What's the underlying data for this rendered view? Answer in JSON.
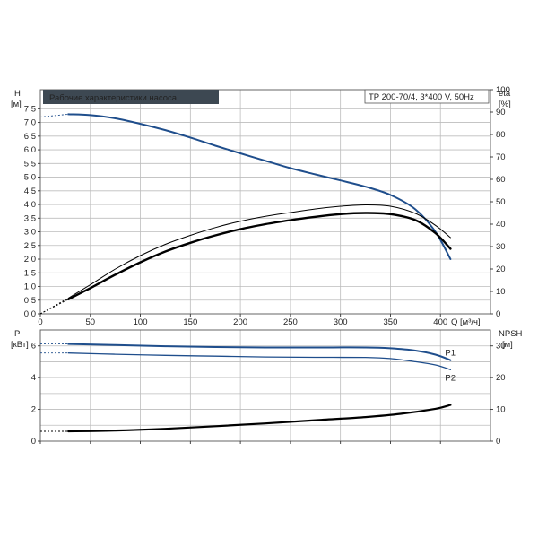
{
  "chart_data": [
    {
      "type": "line",
      "title": "Рабочие характеристики насоса",
      "subtitle": "TP 200-70/4, 3*400 V, 50Hz",
      "x_label": "Q [м³/ч]",
      "x_ticks": [
        "0",
        "50",
        "100",
        "150",
        "200",
        "250",
        "300",
        "350",
        "400"
      ],
      "x_range": [
        0,
        450
      ],
      "y_left_label": "H",
      "y_left_unit": "[м]",
      "y_left_ticks": [
        "0.0",
        "0.5",
        "1.0",
        "1.5",
        "2.0",
        "2.5",
        "3.0",
        "3.5",
        "4.0",
        "4.5",
        "5.0",
        "5.5",
        "6.0",
        "6.5",
        "7.0",
        "7.5"
      ],
      "y_left_range": [
        0,
        8.2
      ],
      "y_right_label": "eta",
      "y_right_unit": "[%]",
      "y_right_ticks": [
        "0",
        "10",
        "20",
        "30",
        "40",
        "50",
        "60",
        "70",
        "80",
        "90",
        "100"
      ],
      "y_right_range": [
        0,
        100
      ],
      "grid": true,
      "series": [
        {
          "axis": "left",
          "color": "#1f4e8c",
          "width": 2,
          "dashed_start": [
            [
              0,
              7.2
            ],
            [
              28,
              7.3
            ]
          ],
          "points": [
            [
              28,
              7.3
            ],
            [
              50,
              7.27
            ],
            [
              75,
              7.15
            ],
            [
              100,
              6.95
            ],
            [
              125,
              6.72
            ],
            [
              150,
              6.45
            ],
            [
              175,
              6.15
            ],
            [
              200,
              5.87
            ],
            [
              225,
              5.6
            ],
            [
              250,
              5.33
            ],
            [
              275,
              5.1
            ],
            [
              300,
              4.88
            ],
            [
              325,
              4.65
            ],
            [
              350,
              4.35
            ],
            [
              375,
              3.82
            ],
            [
              395,
              3.0
            ],
            [
              410,
              2.0
            ]
          ]
        },
        {
          "axis": "right",
          "color": "#000000",
          "width": 1,
          "dashed_start": [
            [
              0,
              0
            ],
            [
              28,
              7
            ]
          ],
          "points": [
            [
              28,
              7
            ],
            [
              50,
              13
            ],
            [
              75,
              20
            ],
            [
              100,
              26
            ],
            [
              125,
              31
            ],
            [
              150,
              35
            ],
            [
              175,
              38.5
            ],
            [
              200,
              41.3
            ],
            [
              225,
              43.5
            ],
            [
              250,
              45.2
            ],
            [
              275,
              46.8
            ],
            [
              300,
              48
            ],
            [
              325,
              48.6
            ],
            [
              350,
              48
            ],
            [
              375,
              44.8
            ],
            [
              395,
              39.5
            ],
            [
              410,
              34
            ]
          ]
        },
        {
          "axis": "right",
          "color": "#000000",
          "width": 2.4,
          "dashed_start": [
            [
              0,
              0
            ],
            [
              28,
              6.5
            ]
          ],
          "points": [
            [
              28,
              6.5
            ],
            [
              50,
              11.5
            ],
            [
              75,
              17.5
            ],
            [
              100,
              23
            ],
            [
              125,
              27.8
            ],
            [
              150,
              31.7
            ],
            [
              175,
              35
            ],
            [
              200,
              37.8
            ],
            [
              225,
              40
            ],
            [
              250,
              41.8
            ],
            [
              275,
              43.3
            ],
            [
              300,
              44.5
            ],
            [
              325,
              45
            ],
            [
              350,
              44.5
            ],
            [
              375,
              41.8
            ],
            [
              395,
              36
            ],
            [
              410,
              29
            ]
          ]
        }
      ]
    },
    {
      "type": "line",
      "x_range": [
        0,
        450
      ],
      "y_left_label": "P",
      "y_left_unit": "[кВт]",
      "y_left_ticks": [
        "0",
        "2",
        "4",
        "6"
      ],
      "y_left_range": [
        0,
        7
      ],
      "y_right_label": "NPSH",
      "y_right_unit": "[м]",
      "y_right_ticks": [
        "0",
        "10",
        "20",
        "30"
      ],
      "y_right_range": [
        0,
        35
      ],
      "grid": true,
      "series": [
        {
          "name": "P1",
          "axis": "left",
          "color": "#1f4e8c",
          "width": 2,
          "dashed_start": [
            [
              0,
              6.12
            ],
            [
              28,
              6.12
            ]
          ],
          "points": [
            [
              28,
              6.12
            ],
            [
              75,
              6.05
            ],
            [
              125,
              5.98
            ],
            [
              175,
              5.93
            ],
            [
              225,
              5.9
            ],
            [
              275,
              5.9
            ],
            [
              325,
              5.9
            ],
            [
              350,
              5.85
            ],
            [
              375,
              5.7
            ],
            [
              395,
              5.45
            ],
            [
              410,
              5.1
            ]
          ]
        },
        {
          "name": "P2",
          "axis": "left",
          "color": "#1f4e8c",
          "width": 1.3,
          "dashed_start": [
            [
              0,
              5.55
            ],
            [
              28,
              5.55
            ]
          ],
          "points": [
            [
              28,
              5.55
            ],
            [
              75,
              5.47
            ],
            [
              125,
              5.4
            ],
            [
              175,
              5.35
            ],
            [
              225,
              5.3
            ],
            [
              275,
              5.28
            ],
            [
              325,
              5.27
            ],
            [
              350,
              5.2
            ],
            [
              375,
              5.0
            ],
            [
              395,
              4.8
            ],
            [
              410,
              4.5
            ]
          ]
        },
        {
          "axis": "right",
          "color": "#000000",
          "width": 2.2,
          "dashed_start": [
            [
              0,
              3.1
            ],
            [
              28,
              3.1
            ]
          ],
          "points": [
            [
              28,
              3.1
            ],
            [
              75,
              3.35
            ],
            [
              125,
              3.9
            ],
            [
              175,
              4.7
            ],
            [
              225,
              5.6
            ],
            [
              275,
              6.6
            ],
            [
              325,
              7.6
            ],
            [
              360,
              8.6
            ],
            [
              395,
              10.2
            ],
            [
              410,
              11.4
            ]
          ]
        }
      ]
    }
  ]
}
